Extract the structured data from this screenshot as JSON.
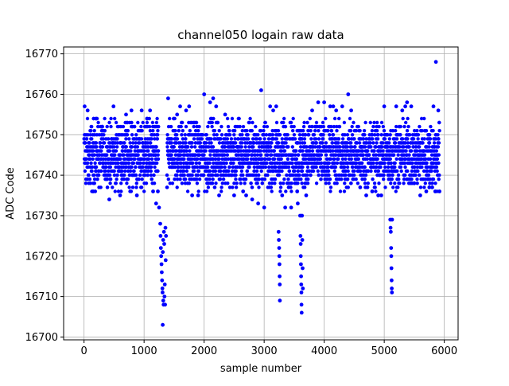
{
  "chart_data": {
    "type": "scatter",
    "title": "channel050 logain raw data",
    "xlabel": "sample number",
    "ylabel": "ADC Code",
    "xlim": [
      -340,
      6230
    ],
    "ylim": [
      16699.3,
      16771.7
    ],
    "xticks": [
      0,
      1000,
      2000,
      3000,
      4000,
      5000,
      6000
    ],
    "yticks": [
      16700,
      16710,
      16720,
      16730,
      16740,
      16750,
      16760,
      16770
    ],
    "grid": true,
    "marker_color": "#0000ff",
    "n_samples": 5920,
    "series": [
      {
        "name": "",
        "description": "dense band of samples (x 0-5920) concentrated between ADC 16736 and 16754; centre about 16745",
        "band": {
          "x_range": [
            0,
            5920
          ],
          "y_range": [
            16736,
            16754
          ]
        },
        "points": [
          [
            10,
            16757
          ],
          [
            60,
            16756
          ],
          [
            150,
            16736
          ],
          [
            200,
            16754
          ],
          [
            300,
            16752
          ],
          [
            420,
            16734
          ],
          [
            490,
            16757
          ],
          [
            600,
            16735
          ],
          [
            700,
            16755
          ],
          [
            790,
            16756
          ],
          [
            880,
            16735
          ],
          [
            960,
            16756
          ],
          [
            1050,
            16754
          ],
          [
            1100,
            16756
          ],
          [
            1150,
            16736
          ],
          [
            1200,
            16733
          ],
          [
            1230,
            16736
          ],
          [
            1250,
            16732
          ],
          [
            1270,
            16728
          ],
          [
            1275,
            16725
          ],
          [
            1280,
            16722
          ],
          [
            1285,
            16720
          ],
          [
            1290,
            16718
          ],
          [
            1295,
            16716
          ],
          [
            1300,
            16714
          ],
          [
            1305,
            16712
          ],
          [
            1308,
            16711
          ],
          [
            1310,
            16703
          ],
          [
            1312,
            16721
          ],
          [
            1318,
            16724
          ],
          [
            1320,
            16709
          ],
          [
            1325,
            16708
          ],
          [
            1330,
            16726
          ],
          [
            1335,
            16723
          ],
          [
            1340,
            16710
          ],
          [
            1345,
            16713
          ],
          [
            1350,
            16708
          ],
          [
            1355,
            16727
          ],
          [
            1360,
            16719
          ],
          [
            1365,
            16725
          ],
          [
            1400,
            16759
          ],
          [
            1550,
            16755
          ],
          [
            1600,
            16757
          ],
          [
            1700,
            16756
          ],
          [
            1750,
            16757
          ],
          [
            1800,
            16735
          ],
          [
            1900,
            16735
          ],
          [
            2000,
            16760
          ],
          [
            2100,
            16758
          ],
          [
            2150,
            16759
          ],
          [
            2200,
            16757
          ],
          [
            2250,
            16735
          ],
          [
            2350,
            16755
          ],
          [
            2500,
            16735
          ],
          [
            2650,
            16736
          ],
          [
            2700,
            16735
          ],
          [
            2800,
            16734
          ],
          [
            2900,
            16733
          ],
          [
            2950,
            16761
          ],
          [
            3000,
            16732
          ],
          [
            3100,
            16757
          ],
          [
            3150,
            16756
          ],
          [
            3200,
            16757
          ],
          [
            3300,
            16735
          ],
          [
            3350,
            16732
          ],
          [
            3450,
            16732
          ],
          [
            3550,
            16736
          ],
          [
            3560,
            16733
          ],
          [
            3240,
            16726
          ],
          [
            3245,
            16724
          ],
          [
            3250,
            16722
          ],
          [
            3252,
            16720
          ],
          [
            3255,
            16718
          ],
          [
            3258,
            16715
          ],
          [
            3260,
            16713
          ],
          [
            3262,
            16709
          ],
          [
            3600,
            16730
          ],
          [
            3605,
            16725
          ],
          [
            3608,
            16723
          ],
          [
            3610,
            16720
          ],
          [
            3612,
            16718
          ],
          [
            3615,
            16715
          ],
          [
            3618,
            16713
          ],
          [
            3620,
            16711
          ],
          [
            3622,
            16708
          ],
          [
            3625,
            16706
          ],
          [
            3630,
            16730
          ],
          [
            3635,
            16724
          ],
          [
            3640,
            16717
          ],
          [
            3645,
            16712
          ],
          [
            3700,
            16735
          ],
          [
            3800,
            16756
          ],
          [
            3900,
            16758
          ],
          [
            4000,
            16758
          ],
          [
            4100,
            16757
          ],
          [
            4150,
            16757
          ],
          [
            4200,
            16756
          ],
          [
            4300,
            16757
          ],
          [
            4400,
            16760
          ],
          [
            4450,
            16756
          ],
          [
            4600,
            16737
          ],
          [
            4700,
            16735
          ],
          [
            4800,
            16736
          ],
          [
            4900,
            16735
          ],
          [
            4950,
            16735
          ],
          [
            5000,
            16757
          ],
          [
            5100,
            16729
          ],
          [
            5105,
            16727
          ],
          [
            5110,
            16726
          ],
          [
            5115,
            16722
          ],
          [
            5118,
            16720
          ],
          [
            5120,
            16717
          ],
          [
            5122,
            16714
          ],
          [
            5125,
            16712
          ],
          [
            5128,
            16711
          ],
          [
            5130,
            16729
          ],
          [
            5200,
            16757
          ],
          [
            5300,
            16756
          ],
          [
            5350,
            16757
          ],
          [
            5380,
            16758
          ],
          [
            5450,
            16757
          ],
          [
            5500,
            16738
          ],
          [
            5600,
            16735
          ],
          [
            5700,
            16736
          ],
          [
            5750,
            16737
          ],
          [
            5800,
            16737
          ],
          [
            5820,
            16757
          ],
          [
            5850,
            16736
          ],
          [
            5860,
            16768
          ],
          [
            5900,
            16756
          ],
          [
            5920,
            16736
          ]
        ]
      }
    ]
  }
}
